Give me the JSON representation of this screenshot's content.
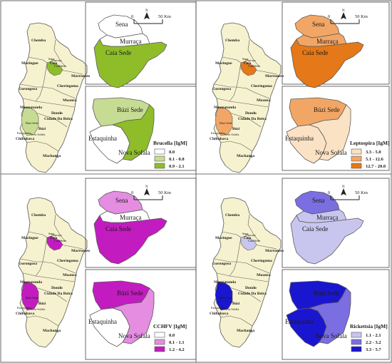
{
  "colors": {
    "province_fill": "#f6f2cf",
    "province_stroke": "#5a5a5a",
    "frame": "#444444",
    "white": "#ffffff"
  },
  "districts": {
    "chemba": "Chemba",
    "maringue": "Maringue",
    "caia": "Caia",
    "sena": "Sena",
    "murraca": "Murraça",
    "caia_sede": "Caia Sede",
    "marromeu": "Marromeu",
    "cheringoma": "Cheringoma",
    "gorongosa": "Gorongosa",
    "muanza": "Muanza",
    "nhamatanda": "Nhamatanda",
    "dondo": "Dondo",
    "cidade_da_beira": "Cidade Da Beira",
    "buzi_sede": "Búzi Sede",
    "buzi": "Búzi",
    "estaquinha": "Estaquinha",
    "nova_sofala": "Nova Sofala",
    "chibabava": "Chibabava",
    "machanga": "Machanga"
  },
  "scalebar": {
    "zero": "0",
    "end": "50 Km",
    "north": "N"
  },
  "panels": [
    {
      "id": "brucella",
      "legend_title": "Brucella [IgM]",
      "classes": [
        {
          "label": "0.0",
          "color": "#ffffff"
        },
        {
          "label": "0.1 - 0.8",
          "color": "#c7dc93"
        },
        {
          "label": "0.9 - 2.1",
          "color": "#8fbd2a"
        }
      ],
      "top_fill": {
        "sena": "#ffffff",
        "murraca": "#ffffff",
        "caia_sede": "#8fbd2a"
      },
      "bottom_fill": {
        "buzi_sede": "#c7dc93",
        "estaquinha": "#ffffff",
        "nova_sofala": "#8fbd2a"
      },
      "overview_caia": "#8fbd2a",
      "overview_buzi": "#c7dc93"
    },
    {
      "id": "leptospira",
      "legend_title": "Leptospira [IgM]",
      "classes": [
        {
          "label": "3.3 - 5.0",
          "color": "#fbe2c4"
        },
        {
          "label": "5.1 - 12.6",
          "color": "#f2a666"
        },
        {
          "label": "12.7 - 20.0",
          "color": "#e57818"
        }
      ],
      "top_fill": {
        "sena": "#f2a666",
        "murraca": "#f2a666",
        "caia_sede": "#e57818"
      },
      "bottom_fill": {
        "buzi_sede": "#f2a666",
        "estaquinha": "#fbe2c4",
        "nova_sofala": "#fbe2c4"
      },
      "overview_caia": "#e57818",
      "overview_buzi": "#f2a666"
    },
    {
      "id": "cchfv",
      "legend_title": "CCHFV [IgM]",
      "classes": [
        {
          "label": "0.0",
          "color": "#ffffff"
        },
        {
          "label": "0.1 - 1.1",
          "color": "#e48de1"
        },
        {
          "label": "1.2 - 4.2",
          "color": "#c21cc0"
        }
      ],
      "top_fill": {
        "sena": "#e48de1",
        "murraca": "#ffffff",
        "caia_sede": "#c21cc0"
      },
      "bottom_fill": {
        "buzi_sede": "#c21cc0",
        "estaquinha": "#ffffff",
        "nova_sofala": "#e48de1"
      },
      "overview_caia": "#c21cc0",
      "overview_buzi": "#c21cc0"
    },
    {
      "id": "rickettsia",
      "legend_title": "Rickettsia [IgM]",
      "classes": [
        {
          "label": "1.1 - 2.1",
          "color": "#c8c6ef"
        },
        {
          "label": "2.2 - 3.2",
          "color": "#7a6ee0"
        },
        {
          "label": "3.3 - 5.7",
          "color": "#1a16cf"
        }
      ],
      "top_fill": {
        "sena": "#7a6ee0",
        "murraca": "#c8c6ef",
        "caia_sede": "#c8c6ef"
      },
      "bottom_fill": {
        "buzi_sede": "#1a16cf",
        "estaquinha": "#1a16cf",
        "nova_sofala": "#7a6ee0"
      },
      "overview_caia": "#c8c6ef",
      "overview_buzi": "#1a16cf"
    }
  ]
}
